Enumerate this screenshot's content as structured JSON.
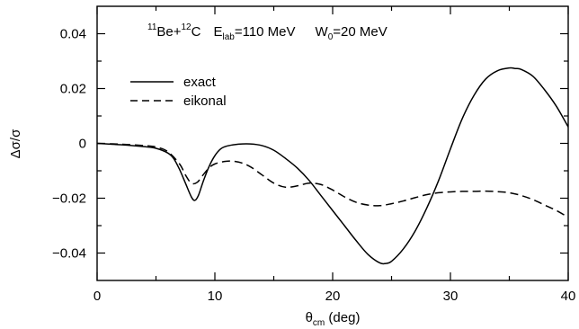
{
  "chart_data": {
    "type": "line",
    "title": "",
    "annotation": {
      "nucleus1_mass": "11",
      "nucleus1": "Be+",
      "nucleus2_mass": "12",
      "nucleus2": "C",
      "energy_symbol": "E",
      "energy_sub": "lab",
      "energy_value": "=110 MeV",
      "w_symbol": "W",
      "w_sub": "0",
      "w_value": "=20 MeV"
    },
    "xlabel": {
      "symbol": "θ",
      "sub": "cm",
      "rest": " (deg)"
    },
    "ylabel": "Δσ/σ",
    "xlim": [
      0,
      40
    ],
    "ylim": [
      -0.05,
      0.05
    ],
    "x_ticks": [
      "0",
      "10",
      "20",
      "30",
      "40"
    ],
    "y_ticks": [
      "−0.04",
      "−0.02",
      "0",
      "0.02",
      "0.04"
    ],
    "legend_position": "upper-left",
    "grid": false,
    "series": [
      {
        "name": "exact",
        "style": "solid",
        "x": [
          0,
          2,
          4,
          5,
          6,
          6.5,
          7,
          7.5,
          8,
          8.3,
          8.6,
          9,
          9.5,
          10,
          10.5,
          11,
          12,
          13,
          14,
          15,
          16,
          17,
          18,
          19,
          20,
          21,
          22,
          23,
          24,
          24.5,
          25,
          26,
          27,
          28,
          29,
          30,
          31,
          32,
          33,
          34,
          35,
          35.5,
          36,
          37,
          38,
          39,
          40
        ],
        "y": [
          0.0,
          -0.0005,
          -0.0012,
          -0.0018,
          -0.0035,
          -0.0055,
          -0.0095,
          -0.0145,
          -0.0195,
          -0.0208,
          -0.019,
          -0.014,
          -0.0085,
          -0.0045,
          -0.002,
          -0.001,
          -0.0003,
          -0.0002,
          -0.0008,
          -0.0025,
          -0.0055,
          -0.009,
          -0.0135,
          -0.019,
          -0.0245,
          -0.03,
          -0.0355,
          -0.0405,
          -0.0436,
          -0.0438,
          -0.043,
          -0.0385,
          -0.032,
          -0.0235,
          -0.0135,
          -0.002,
          0.009,
          0.0175,
          0.0235,
          0.0265,
          0.0275,
          0.0273,
          0.027,
          0.0245,
          0.0195,
          0.0135,
          0.006
        ]
      },
      {
        "name": "eikonal",
        "style": "dashed",
        "x": [
          0,
          2,
          4,
          5,
          6,
          7,
          7.5,
          8,
          8.5,
          9,
          9.5,
          10,
          11,
          12,
          13,
          14,
          15,
          16,
          17,
          18,
          19,
          20,
          21,
          22,
          23,
          24,
          25,
          26,
          27,
          28,
          29,
          30,
          31,
          32,
          33,
          34,
          35,
          36,
          37,
          38,
          39,
          40
        ],
        "y": [
          0.0,
          -0.0003,
          -0.0008,
          -0.0013,
          -0.003,
          -0.0075,
          -0.0115,
          -0.0145,
          -0.0142,
          -0.0115,
          -0.009,
          -0.0075,
          -0.0065,
          -0.0068,
          -0.0085,
          -0.0115,
          -0.0145,
          -0.016,
          -0.0155,
          -0.0145,
          -0.015,
          -0.017,
          -0.0195,
          -0.0215,
          -0.0225,
          -0.0227,
          -0.022,
          -0.021,
          -0.0198,
          -0.0187,
          -0.018,
          -0.0177,
          -0.0175,
          -0.0175,
          -0.0174,
          -0.0176,
          -0.018,
          -0.019,
          -0.0205,
          -0.0225,
          -0.0245,
          -0.027
        ]
      }
    ]
  }
}
